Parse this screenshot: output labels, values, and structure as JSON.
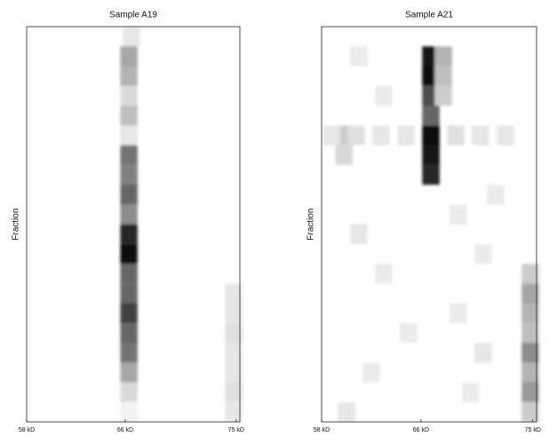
{
  "chart_data": [
    {
      "type": "heatmap",
      "title": "Sample A19",
      "y_label": "Fraction",
      "xlim": [
        58,
        75.3
      ],
      "ylim": [
        0,
        20
      ],
      "xticks": [
        {
          "value": 58,
          "label": "58 kD"
        },
        {
          "value": 66,
          "label": "66 kD"
        },
        {
          "value": 75,
          "label": "75 kD"
        }
      ],
      "spots": {
        "x": [
          66.5,
          66.3,
          66.3,
          66.3,
          66.3,
          66.3,
          66.3,
          66.3,
          66.3,
          66.3,
          66.3,
          66.3,
          66.3,
          66.3,
          66.3,
          66.3,
          66.3,
          66.3,
          66.3,
          66.3,
          74.8,
          74.8,
          74.8,
          74.8,
          74.8,
          74.8,
          74.8
        ],
        "y": [
          0.5,
          1.5,
          2.5,
          3.5,
          4.5,
          5.5,
          6.5,
          7.5,
          8.5,
          9.5,
          10.5,
          11.5,
          12.5,
          13.5,
          14.5,
          15.5,
          16.5,
          17.5,
          18.5,
          19.5,
          13.5,
          14.5,
          15.5,
          16.5,
          17.5,
          18.5,
          19.5
        ],
        "values": [
          0.1,
          0.35,
          0.3,
          0.15,
          0.25,
          0.1,
          0.55,
          0.5,
          0.6,
          0.45,
          0.85,
          0.95,
          0.6,
          0.6,
          0.75,
          0.6,
          0.55,
          0.35,
          0.15,
          0.05,
          0.1,
          0.1,
          0.12,
          0.1,
          0.1,
          0.12,
          0.1
        ]
      }
    },
    {
      "type": "heatmap",
      "title": "Sample A21",
      "y_label": "Fraction",
      "xlim": [
        58,
        75.3
      ],
      "ylim": [
        0,
        20
      ],
      "xticks": [
        {
          "value": 58,
          "label": "58 kD"
        },
        {
          "value": 66,
          "label": "66 kD"
        },
        {
          "value": 75,
          "label": "75 kD"
        }
      ],
      "spots": {
        "x": [
          66.8,
          66.8,
          66.8,
          66.8,
          66.8,
          66.8,
          66.8,
          67.8,
          67.8,
          67.8,
          59.8,
          59.8,
          58.8,
          60.8,
          62.8,
          64.8,
          68.8,
          70.8,
          72.8,
          74.8,
          74.8,
          74.8,
          74.8,
          74.8,
          74.8,
          74.8,
          74.8,
          61,
          63,
          69,
          71,
          61,
          63,
          69,
          71,
          62,
          70,
          60,
          72,
          65
        ],
        "y": [
          1.5,
          2.5,
          3.5,
          4.5,
          5.5,
          6.5,
          7.5,
          1.5,
          2.5,
          3.5,
          5.5,
          6.5,
          5.5,
          5.5,
          5.5,
          5.5,
          5.5,
          5.5,
          5.5,
          12.5,
          13.5,
          14.5,
          15.5,
          16.5,
          17.5,
          18.5,
          19.5,
          1.5,
          3.5,
          9.5,
          11.5,
          10.5,
          12.5,
          14.5,
          16.5,
          17.5,
          18.5,
          19.5,
          8.5,
          15.5
        ],
        "values": [
          0.9,
          0.95,
          0.7,
          0.6,
          0.95,
          0.9,
          0.85,
          0.3,
          0.25,
          0.2,
          0.2,
          0.15,
          0.1,
          0.12,
          0.1,
          0.1,
          0.12,
          0.1,
          0.1,
          0.2,
          0.35,
          0.3,
          0.25,
          0.45,
          0.3,
          0.4,
          0.2,
          0.08,
          0.08,
          0.08,
          0.08,
          0.1,
          0.08,
          0.08,
          0.1,
          0.08,
          0.08,
          0.1,
          0.08,
          0.08
        ]
      }
    }
  ]
}
